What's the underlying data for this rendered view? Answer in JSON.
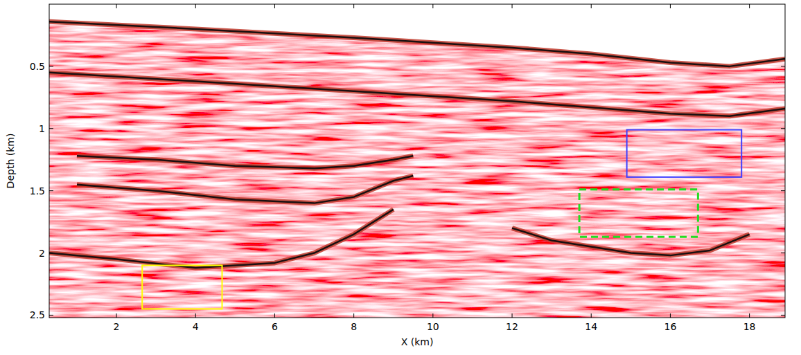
{
  "chart_data": {
    "type": "seismic_image",
    "xlabel": "X (km)",
    "ylabel": "Depth (km)",
    "xlim": [
      0.3,
      18.9
    ],
    "ylim": [
      0,
      2.52
    ],
    "xticks": [
      2,
      4,
      6,
      8,
      10,
      12,
      14,
      16,
      18
    ],
    "yticks": [
      0.5,
      1,
      1.5,
      2,
      2.5
    ],
    "horizons": [
      {
        "x": [
          0.3,
          4,
          8,
          10,
          12,
          14,
          16,
          17.5,
          18.9
        ],
        "depth": [
          0.14,
          0.2,
          0.27,
          0.31,
          0.35,
          0.4,
          0.47,
          0.5,
          0.44
        ]
      },
      {
        "x": [
          0.3,
          4,
          8,
          10,
          12,
          14,
          16,
          17.5,
          18.9
        ],
        "depth": [
          0.55,
          0.62,
          0.7,
          0.74,
          0.78,
          0.83,
          0.88,
          0.9,
          0.84
        ]
      },
      {
        "x": [
          1,
          3,
          5,
          7,
          8,
          9,
          9.5
        ],
        "depth": [
          1.22,
          1.25,
          1.3,
          1.32,
          1.3,
          1.25,
          1.22
        ]
      },
      {
        "x": [
          1,
          3,
          5,
          7,
          8,
          9,
          9.5
        ],
        "depth": [
          1.45,
          1.5,
          1.57,
          1.6,
          1.55,
          1.42,
          1.38
        ]
      },
      {
        "x": [
          0.3,
          2,
          4,
          6,
          7,
          8,
          9
        ],
        "depth": [
          2.0,
          2.05,
          2.12,
          2.08,
          2.0,
          1.85,
          1.65
        ]
      },
      {
        "x": [
          12,
          13,
          14,
          15,
          16,
          17,
          18
        ],
        "depth": [
          1.8,
          1.9,
          1.95,
          2.0,
          2.02,
          1.98,
          1.85
        ]
      }
    ],
    "boxes": [
      {
        "x": [
          2.65,
          4.67
        ],
        "depth": [
          2.1,
          2.45
        ],
        "color": "#ffff00",
        "line_style": "solid"
      },
      {
        "x": [
          14.9,
          17.8
        ],
        "depth": [
          1.01,
          1.39
        ],
        "color": "#4040ff",
        "line_style": "solid"
      },
      {
        "x": [
          13.7,
          16.7
        ],
        "depth": [
          1.49,
          1.87
        ],
        "color": "#22dd22",
        "line_style": "dashed"
      }
    ]
  }
}
